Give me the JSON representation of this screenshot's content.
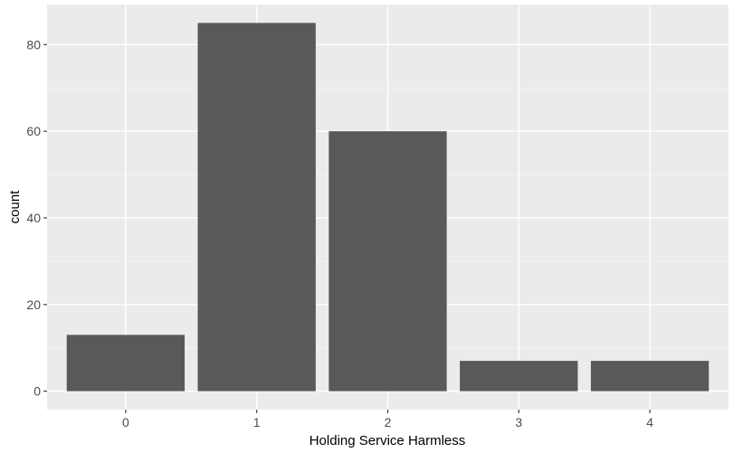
{
  "chart_data": {
    "type": "bar",
    "title": "",
    "xlabel": "Holding Service Harmless",
    "ylabel": "count",
    "categories": [
      "0",
      "1",
      "2",
      "3",
      "4"
    ],
    "values": [
      13,
      85,
      60,
      7,
      7
    ],
    "ylim": [
      -4.25,
      89.25
    ],
    "yticks": [
      0,
      20,
      40,
      60,
      80
    ],
    "ytick_labels": [
      "0",
      "20",
      "40",
      "60",
      "80"
    ],
    "grid": true,
    "bar_color": "#595959",
    "panel_color": "#EBEBEB",
    "grid_color": "#FFFFFF"
  }
}
